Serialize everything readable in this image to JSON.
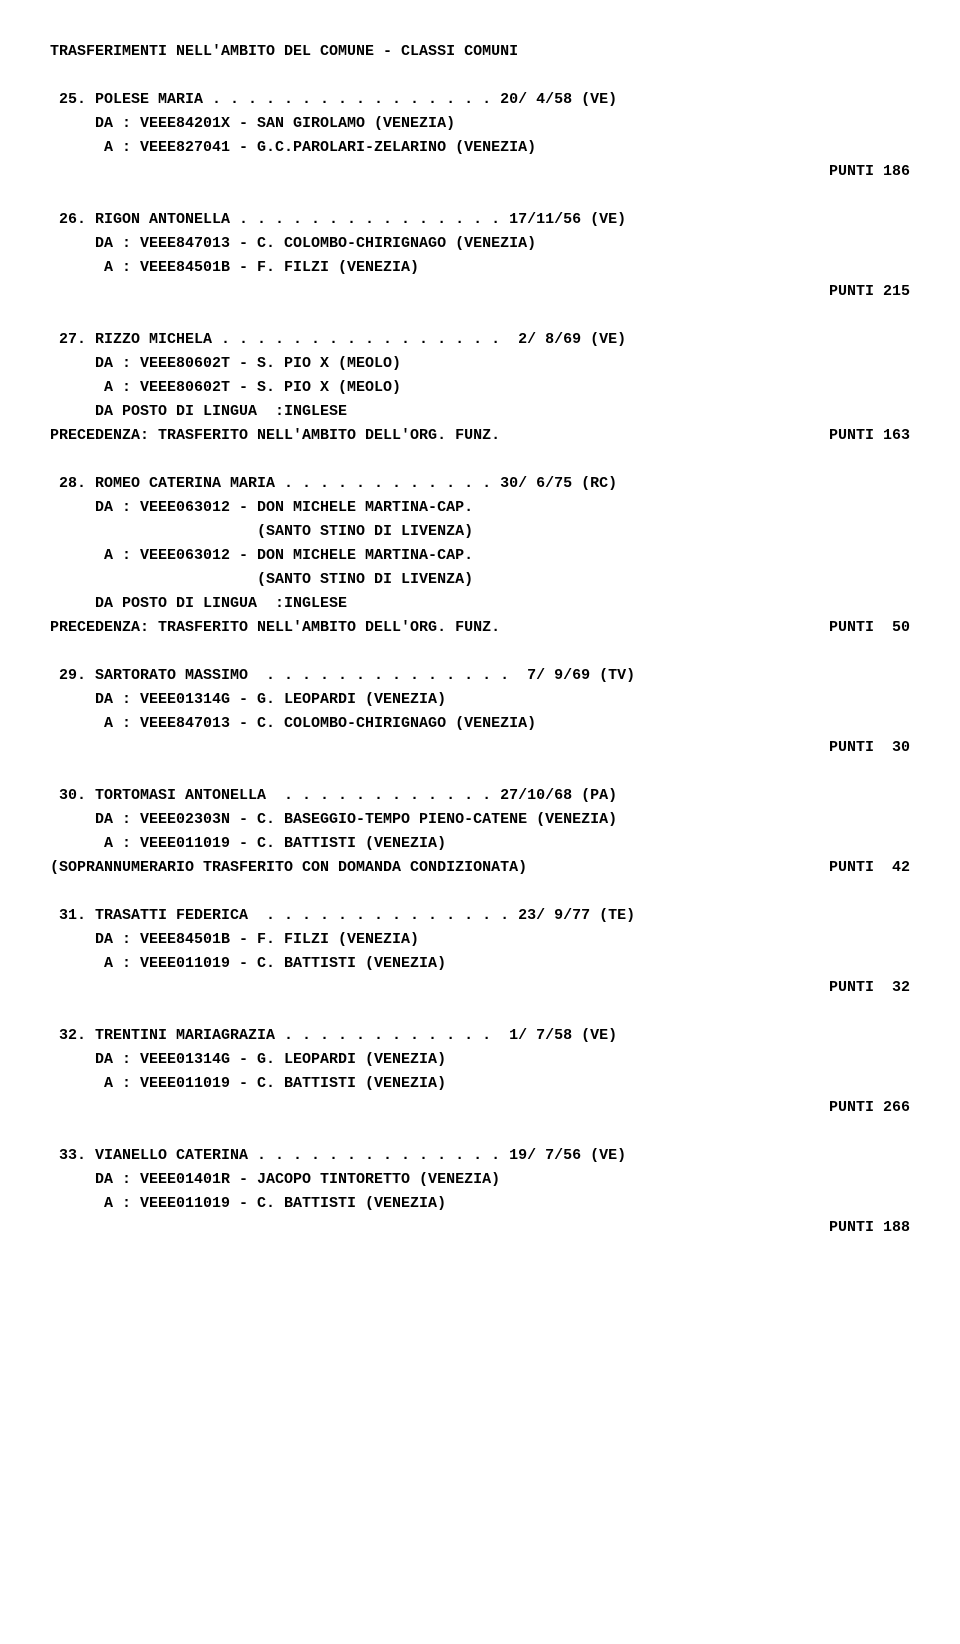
{
  "title": "TRASFERIMENTI NELL'AMBITO DEL COMUNE - CLASSI COMUNI",
  "entries": [
    {
      "num": "25",
      "name": "POLESE MARIA",
      "dots": " . . . . . . . . . . . . . . . . ",
      "date": "20/ 4/58 (VE)",
      "da": "DA : VEEE84201X - SAN GIROLAMO (VENEZIA)",
      "a": " A : VEEE827041 - G.C.PAROLARI-ZELARINO (VENEZIA)",
      "punti": "PUNTI 186"
    },
    {
      "num": "26",
      "name": "RIGON ANTONELLA",
      "dots": " . . . . . . . . . . . . . . . ",
      "date": "17/11/56 (VE)",
      "da": "DA : VEEE847013 - C. COLOMBO-CHIRIGNAGO (VENEZIA)",
      "a": " A : VEEE84501B - F. FILZI (VENEZIA)",
      "punti": "PUNTI 215"
    },
    {
      "num": "27",
      "name": "RIZZO MICHELA",
      "dots": " . . . . . . . . . . . . . . . . ",
      "date": " 2/ 8/69 (VE)",
      "da": "DA : VEEE80602T - S. PIO X (MEOLO)",
      "a": " A : VEEE80602T - S. PIO X (MEOLO)",
      "extra1": "DA POSTO DI LINGUA  :INGLESE",
      "prec_left": "PRECEDENZA: TRASFERITO NELL'AMBITO DELL'ORG. FUNZ.",
      "prec_right": "PUNTI 163"
    },
    {
      "num": "28",
      "name": "ROMEO CATERINA MARIA",
      "dots": " . . . . . . . . . . . . ",
      "date": "30/ 6/75 (RC)",
      "da": "DA : VEEE063012 - DON MICHELE MARTINA-CAP.",
      "da2": "                  (SANTO STINO DI LIVENZA)",
      "a": " A : VEEE063012 - DON MICHELE MARTINA-CAP.",
      "a2": "                  (SANTO STINO DI LIVENZA)",
      "extra1": "DA POSTO DI LINGUA  :INGLESE",
      "prec_left": "PRECEDENZA: TRASFERITO NELL'AMBITO DELL'ORG. FUNZ.",
      "prec_right": "PUNTI  50"
    },
    {
      "num": "29",
      "name": "SARTORATO MASSIMO",
      "dots": "  . . . . . . . . . . . . . . ",
      "date": " 7/ 9/69 (TV)",
      "da": "DA : VEEE01314G - G. LEOPARDI (VENEZIA)",
      "a": " A : VEEE847013 - C. COLOMBO-CHIRIGNAGO (VENEZIA)",
      "punti": "PUNTI  30"
    },
    {
      "num": "30",
      "name": "TORTOMASI ANTONELLA",
      "dots": "  . . . . . . . . . . . . ",
      "date": "27/10/68 (PA)",
      "da": "DA : VEEE02303N - C. BASEGGIO-TEMPO PIENO-CATENE (VENEZIA)",
      "a": " A : VEEE011019 - C. BATTISTI (VENEZIA)",
      "sopra_left": "(SOPRANNUMERARIO TRASFERITO CON DOMANDA CONDIZIONATA)",
      "sopra_right": "PUNTI  42"
    },
    {
      "num": "31",
      "name": "TRASATTI FEDERICA",
      "dots": "  . . . . . . . . . . . . . . ",
      "date": "23/ 9/77 (TE)",
      "da": "DA : VEEE84501B - F. FILZI (VENEZIA)",
      "a": " A : VEEE011019 - C. BATTISTI (VENEZIA)",
      "punti": "PUNTI  32"
    },
    {
      "num": "32",
      "name": "TRENTINI MARIAGRAZIA",
      "dots": " . . . . . . . . . . . . ",
      "date": " 1/ 7/58 (VE)",
      "da": "DA : VEEE01314G - G. LEOPARDI (VENEZIA)",
      "a": " A : VEEE011019 - C. BATTISTI (VENEZIA)",
      "punti": "PUNTI 266"
    },
    {
      "num": "33",
      "name": "VIANELLO CATERINA",
      "dots": " . . . . . . . . . . . . . . ",
      "date": "19/ 7/56 (VE)",
      "da": "DA : VEEE01401R - JACOPO TINTORETTO (VENEZIA)",
      "a": " A : VEEE011019 - C. BATTISTI (VENEZIA)",
      "punti": "PUNTI 188"
    }
  ]
}
